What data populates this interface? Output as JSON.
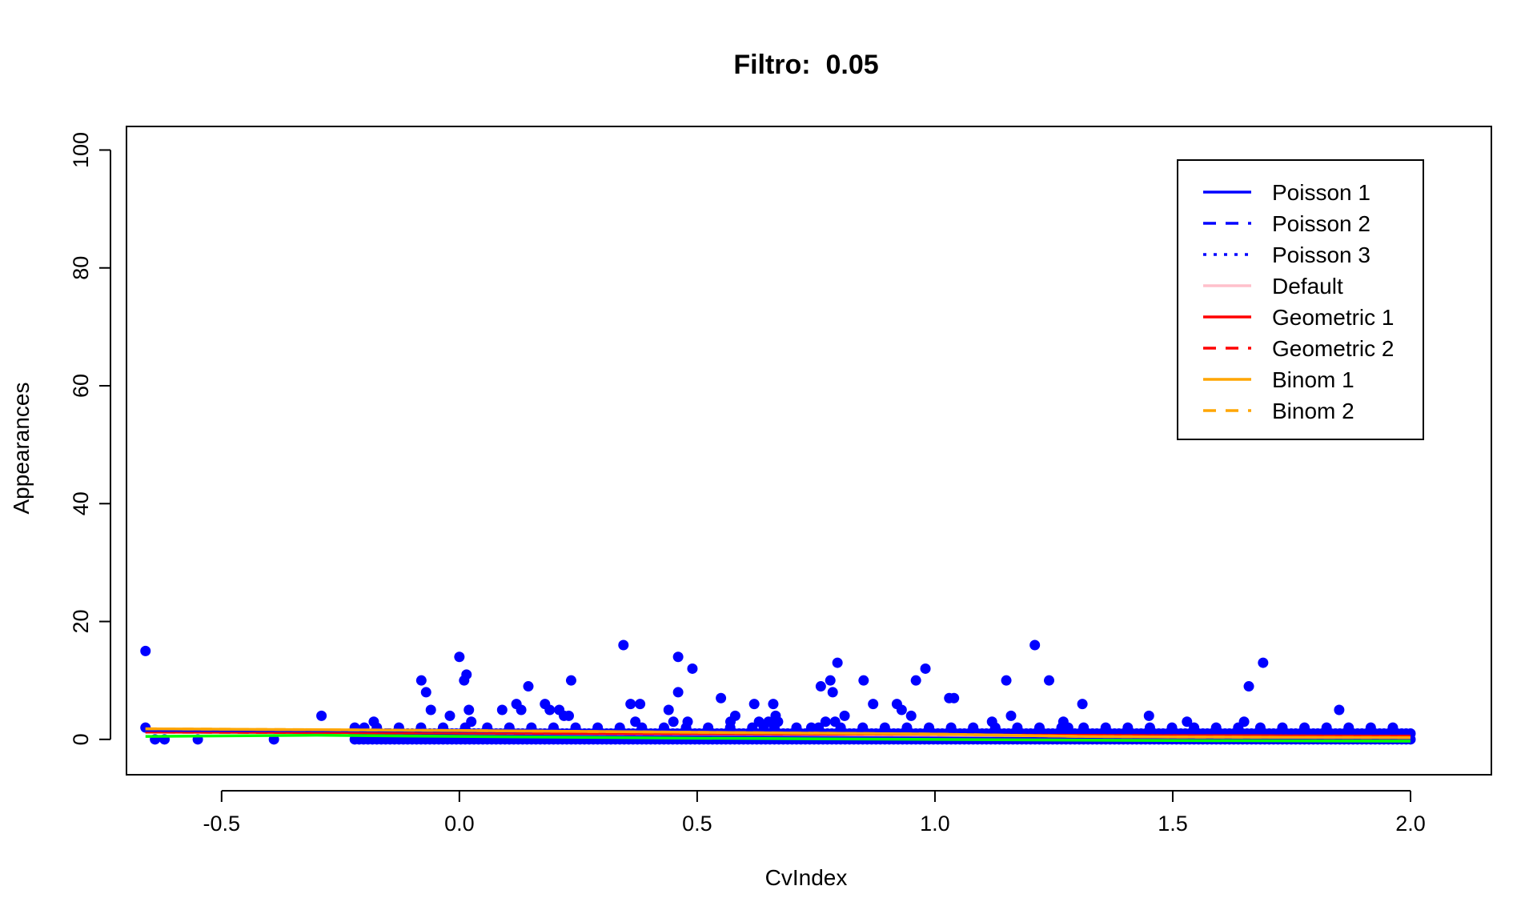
{
  "chart_data": {
    "type": "scatter",
    "title": "Filtro:  0.05",
    "xlabel": "CvIndex",
    "ylabel": "Appearances",
    "xlim": [
      -0.7,
      2.17
    ],
    "ylim": [
      -6,
      104
    ],
    "xticks": [
      -0.5,
      0.0,
      0.5,
      1.0,
      1.5,
      2.0
    ],
    "xtick_labels": [
      "-0.5",
      "0.0",
      "0.5",
      "1.0",
      "1.5",
      "2.0"
    ],
    "yticks": [
      0,
      20,
      40,
      60,
      80,
      100
    ],
    "ytick_labels": [
      "0",
      "20",
      "40",
      "60",
      "80",
      "100"
    ],
    "grid": false,
    "legend_position": "top-right",
    "point_color": "#0000ff",
    "points": [
      [
        -0.66,
        15
      ],
      [
        -0.66,
        2
      ],
      [
        -0.64,
        0
      ],
      [
        -0.62,
        0
      ],
      [
        -0.55,
        0
      ],
      [
        -0.39,
        0
      ],
      [
        -0.29,
        4
      ],
      [
        -0.2,
        2
      ],
      [
        -0.18,
        3
      ],
      [
        -0.15,
        1
      ],
      [
        -0.08,
        10
      ],
      [
        -0.07,
        8
      ],
      [
        -0.06,
        5
      ],
      [
        -0.02,
        4
      ],
      [
        0.0,
        14
      ],
      [
        0.01,
        10
      ],
      [
        0.015,
        11
      ],
      [
        0.02,
        5
      ],
      [
        0.025,
        3
      ],
      [
        0.09,
        5
      ],
      [
        0.12,
        6
      ],
      [
        0.13,
        5
      ],
      [
        0.145,
        9
      ],
      [
        0.18,
        6
      ],
      [
        0.19,
        5
      ],
      [
        0.21,
        5
      ],
      [
        0.22,
        4
      ],
      [
        0.23,
        4
      ],
      [
        0.235,
        10
      ],
      [
        0.345,
        16
      ],
      [
        0.36,
        6
      ],
      [
        0.38,
        6
      ],
      [
        0.37,
        3
      ],
      [
        0.44,
        5
      ],
      [
        0.45,
        3
      ],
      [
        0.46,
        14
      ],
      [
        0.46,
        8
      ],
      [
        0.48,
        3
      ],
      [
        0.49,
        12
      ],
      [
        0.55,
        7
      ],
      [
        0.57,
        3
      ],
      [
        0.58,
        4
      ],
      [
        0.62,
        6
      ],
      [
        0.63,
        3
      ],
      [
        0.64,
        2
      ],
      [
        0.65,
        3
      ],
      [
        0.66,
        6
      ],
      [
        0.665,
        4
      ],
      [
        0.67,
        3
      ],
      [
        0.74,
        2
      ],
      [
        0.76,
        9
      ],
      [
        0.77,
        3
      ],
      [
        0.78,
        10
      ],
      [
        0.785,
        8
      ],
      [
        0.79,
        3
      ],
      [
        0.795,
        13
      ],
      [
        0.81,
        4
      ],
      [
        0.85,
        10
      ],
      [
        0.87,
        6
      ],
      [
        0.92,
        6
      ],
      [
        0.93,
        5
      ],
      [
        0.95,
        4
      ],
      [
        0.96,
        10
      ],
      [
        0.98,
        12
      ],
      [
        1.03,
        7
      ],
      [
        1.04,
        7
      ],
      [
        1.12,
        3
      ],
      [
        1.15,
        10
      ],
      [
        1.16,
        4
      ],
      [
        1.21,
        16
      ],
      [
        1.24,
        10
      ],
      [
        1.27,
        3
      ],
      [
        1.28,
        2
      ],
      [
        1.31,
        6
      ],
      [
        1.45,
        4
      ],
      [
        1.53,
        3
      ],
      [
        1.65,
        3
      ],
      [
        1.66,
        9
      ],
      [
        1.69,
        13
      ],
      [
        1.85,
        5
      ]
    ],
    "dense_band": {
      "x_range": [
        -0.22,
        2.0
      ],
      "y_values": [
        0,
        1,
        2
      ]
    },
    "series": [
      {
        "name": "Poisson 1",
        "color": "#0000ff",
        "dash": "solid",
        "x": [
          -0.66,
          2.0
        ],
        "y": [
          1.5,
          1.0
        ]
      },
      {
        "name": "Poisson 2",
        "color": "#0000ff",
        "dash": "dashed",
        "x": [
          -0.66,
          2.0
        ],
        "y": [
          1.5,
          1.0
        ]
      },
      {
        "name": "Poisson 3",
        "color": "#0000ff",
        "dash": "dotted",
        "x": [
          -0.66,
          2.0
        ],
        "y": [
          1.5,
          1.0
        ]
      },
      {
        "name": "Default",
        "color": "#ffc0cb",
        "dash": "solid",
        "x": [
          -0.66,
          2.0
        ],
        "y": [
          1.3,
          0.3
        ]
      },
      {
        "name": "Geometric 1",
        "color": "#ff0000",
        "dash": "solid",
        "x": [
          -0.66,
          2.0
        ],
        "y": [
          1.2,
          0.6
        ]
      },
      {
        "name": "Geometric 2",
        "color": "#ff0000",
        "dash": "dashed",
        "x": [
          -0.66,
          2.0
        ],
        "y": [
          1.2,
          0.6
        ]
      },
      {
        "name": "Binom 1",
        "color": "#ffa500",
        "dash": "solid",
        "x": [
          -0.66,
          0.0,
          0.5,
          1.0,
          1.3,
          1.5,
          2.0
        ],
        "y": [
          1.8,
          1.5,
          1.2,
          0.9,
          0.5,
          0.4,
          0.3
        ]
      },
      {
        "name": "Binom 2",
        "color": "#ffa500",
        "dash": "dashed",
        "x": [
          -0.66,
          0.0,
          0.5,
          1.0,
          1.3,
          1.5,
          2.0
        ],
        "y": [
          1.8,
          1.5,
          1.2,
          0.9,
          0.5,
          0.4,
          0.3
        ]
      }
    ],
    "extra_lines": [
      {
        "color": "#00ff00",
        "dash": "solid",
        "x": [
          -0.66,
          -0.3,
          0.0,
          0.5,
          1.0,
          1.5,
          2.0
        ],
        "y": [
          0.5,
          0.7,
          0.5,
          0.2,
          0.0,
          -0.2,
          -0.3
        ]
      }
    ]
  }
}
